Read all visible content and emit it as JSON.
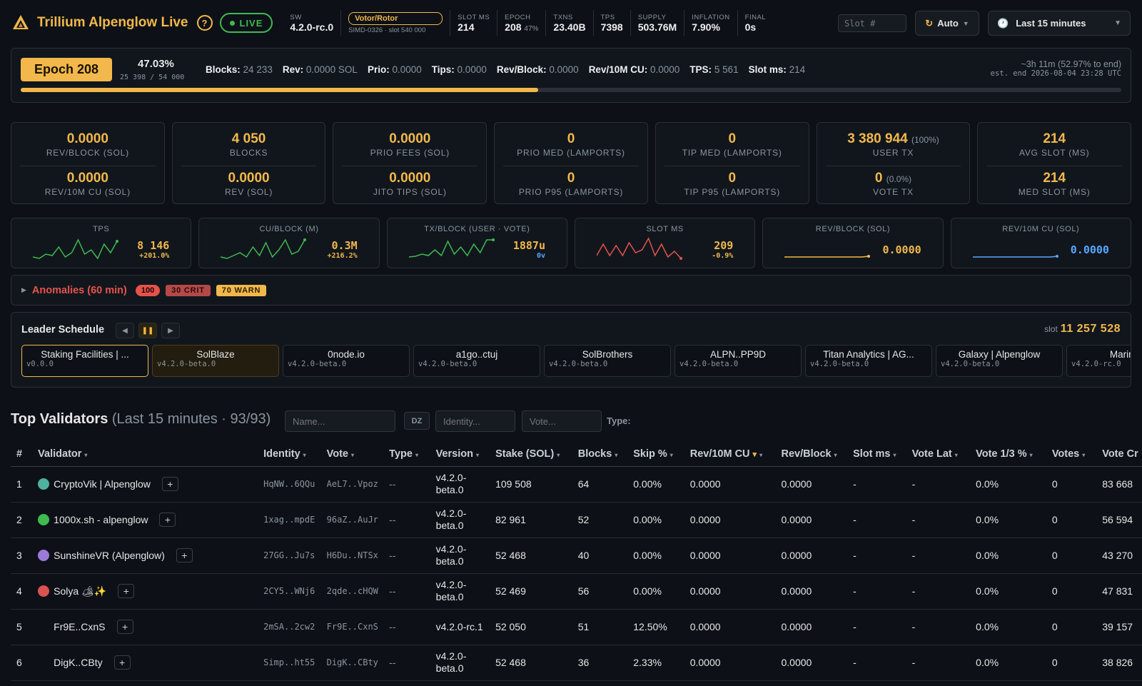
{
  "header": {
    "title": "Trillium Alpenglow Live",
    "help": "?",
    "live": "LIVE",
    "stats": [
      {
        "label": "SW",
        "value": "4.2.0-rc.0"
      },
      {
        "label": "SLOT MS",
        "value": "214"
      },
      {
        "label": "EPOCH",
        "value": "208",
        "extra": "47%"
      },
      {
        "label": "TXNS",
        "value": "23.40B"
      },
      {
        "label": "TPS",
        "value": "7398"
      },
      {
        "label": "SUPPLY",
        "value": "503.76M"
      },
      {
        "label": "INFLATION",
        "value": "7.90%"
      },
      {
        "label": "FINAL",
        "value": "0s"
      }
    ],
    "votor": {
      "label": "Votor/Rotor",
      "sub": "SIMD-0326 · slot 540 000"
    },
    "slot_placeholder": "Slot #",
    "auto_label": "Auto",
    "range_label": "Last 15 minutes"
  },
  "epoch": {
    "badge": "Epoch 208",
    "pct": "47.03%",
    "slots": "25 398 / 54 000",
    "progress": 0.4703,
    "stats": [
      {
        "k": "Blocks:",
        "v": "24 233"
      },
      {
        "k": "Rev:",
        "v": "0.0000 SOL"
      },
      {
        "k": "Prio:",
        "v": "0.0000"
      },
      {
        "k": "Tips:",
        "v": "0.0000"
      },
      {
        "k": "Rev/Block:",
        "v": "0.0000"
      },
      {
        "k": "Rev/10M CU:",
        "v": "0.0000"
      },
      {
        "k": "TPS:",
        "v": "5 561"
      },
      {
        "k": "Slot ms:",
        "v": "214"
      }
    ],
    "remaining": "~3h 11m (52.97% to end)",
    "est_end": "est. end 2026-08-04 23:28 UTC"
  },
  "cards": [
    {
      "top": {
        "v": "0.0000",
        "l": "REV/BLOCK (SOL)"
      },
      "bottom": {
        "v": "0.0000",
        "l": "REV/10M CU (SOL)"
      }
    },
    {
      "top": {
        "v": "4 050",
        "l": "BLOCKS"
      },
      "bottom": {
        "v": "0.0000",
        "l": "REV (SOL)"
      }
    },
    {
      "top": {
        "v": "0.0000",
        "l": "PRIO FEES (SOL)"
      },
      "bottom": {
        "v": "0.0000",
        "l": "JITO TIPS (SOL)"
      }
    },
    {
      "top": {
        "v": "0",
        "l": "PRIO MED (LAMPORTS)"
      },
      "bottom": {
        "v": "0",
        "l": "PRIO P95 (LAMPORTS)"
      }
    },
    {
      "top": {
        "v": "0",
        "l": "TIP MED (LAMPORTS)"
      },
      "bottom": {
        "v": "0",
        "l": "TIP P95 (LAMPORTS)"
      }
    },
    {
      "top": {
        "v": "3 380 944",
        "x": "(100%)",
        "l": "USER TX"
      },
      "bottom": {
        "v": "0",
        "x": "(0.0%)",
        "l": "VOTE TX"
      }
    },
    {
      "top": {
        "v": "214",
        "l": "AVG SLOT (MS)"
      },
      "bottom": {
        "v": "214",
        "l": "MED SLOT (MS)"
      }
    }
  ],
  "sparks": [
    {
      "label": "TPS",
      "main": "8 146",
      "sub": "+201.0%",
      "color": "#3fb950",
      "main_color": "#f2b84b",
      "sub_color": "#f2b84b"
    },
    {
      "label": "CU/BLOCK (M)",
      "main": "0.3M",
      "sub": "+216.2%",
      "color": "#3fb950",
      "main_color": "#f2b84b",
      "sub_color": "#f2b84b"
    },
    {
      "label": "TX/BLOCK (USER · VOTE)",
      "main": "1887u",
      "sub": "0v",
      "color": "#3fb950",
      "main_color": "#f2b84b",
      "sub_color": "#58a6ff"
    },
    {
      "label": "SLOT MS",
      "main": "209",
      "sub": "-0.9%",
      "color": "#e5534b",
      "main_color": "#f2b84b",
      "sub_color": "#f2b84b"
    },
    {
      "label": "REV/BLOCK (SOL)",
      "main": "0.0000",
      "sub": "",
      "color": "#f2b84b",
      "main_color": "#f2b84b",
      "sub_color": "#f2b84b"
    },
    {
      "label": "REV/10M CU (SOL)",
      "main": "0.0000",
      "sub": "",
      "color": "#58a6ff",
      "main_color": "#58a6ff",
      "sub_color": "#58a6ff"
    }
  ],
  "anomalies": {
    "title": "Anomalies (60 min)",
    "count": "100",
    "crit": "30 CRIT",
    "warn": "70 WARN"
  },
  "leader": {
    "title": "Leader Schedule",
    "slot_label": "slot",
    "slot": "11 257 528",
    "slots": [
      {
        "name": "Staking Facilities | ...",
        "ver": "v0.0.0"
      },
      {
        "name": "SolBlaze",
        "ver": "v4.2.0-beta.0"
      },
      {
        "name": "0node.io",
        "ver": "v4.2.0-beta.0"
      },
      {
        "name": "a1go..ctuj",
        "ver": "v4.2.0-beta.0"
      },
      {
        "name": "SolBrothers",
        "ver": "v4.2.0-beta.0"
      },
      {
        "name": "ALPN..PP9D",
        "ver": "v4.2.0-beta.0"
      },
      {
        "name": "Titan Analytics | AG...",
        "ver": "v4.2.0-beta.0"
      },
      {
        "name": "Galaxy | Alpenglow",
        "ver": "v4.2.0-beta.0"
      },
      {
        "name": "Marinade",
        "ver": "v4.2.0-rc.0"
      }
    ]
  },
  "validators": {
    "title": "Top Validators",
    "subtitle": "(Last 15 minutes · 93/93)",
    "filters": {
      "name": "Name...",
      "dz": "DZ",
      "identity": "Identity...",
      "vote": "Vote...",
      "type": "Type:"
    },
    "columns": [
      "#",
      "Validator",
      "Identity",
      "Vote",
      "Type",
      "Version",
      "Stake (SOL)",
      "Blocks",
      "Skip %",
      "Rev/10M CU",
      "Rev/Block",
      "Slot ms",
      "Vote Lat",
      "Vote 1/3 %",
      "Votes",
      "Vote Cr"
    ],
    "rows": [
      {
        "n": "1",
        "name": "CryptoVik | Alpenglow",
        "avatar": "#4fb0a0",
        "identity": "HqNW..6QQu",
        "vote": "AeL7..Vpoz",
        "type": "--",
        "version": "v4.2.0-beta.0",
        "stake": "109 508",
        "blocks": "64",
        "skip": "0.00%",
        "rev10": "0.0000",
        "revblock": "0.0000",
        "slotms": "-",
        "votelat": "-",
        "vote13": "0.0%",
        "votes": "0",
        "votecr": "83 668"
      },
      {
        "n": "2",
        "name": "1000x.sh - alpenglow",
        "avatar": "#3fb950",
        "identity": "1xag..mpdE",
        "vote": "96aZ..AuJr",
        "type": "--",
        "version": "v4.2.0-beta.0",
        "stake": "82 961",
        "blocks": "52",
        "skip": "0.00%",
        "rev10": "0.0000",
        "revblock": "0.0000",
        "slotms": "-",
        "votelat": "-",
        "vote13": "0.0%",
        "votes": "0",
        "votecr": "56 594"
      },
      {
        "n": "3",
        "name": "SunshineVR (Alpenglow)",
        "avatar": "#9c7bd8",
        "identity": "27GG..Ju7s",
        "vote": "H6Du..NTSx",
        "type": "--",
        "version": "v4.2.0-beta.0",
        "stake": "52 468",
        "blocks": "40",
        "skip": "0.00%",
        "rev10": "0.0000",
        "revblock": "0.0000",
        "slotms": "-",
        "votelat": "-",
        "vote13": "0.0%",
        "votes": "0",
        "votecr": "43 270"
      },
      {
        "n": "4",
        "name": "Solya 🏕✨",
        "avatar": "#d9534f",
        "identity": "2CY5..WNj6",
        "vote": "2qde..cHQW",
        "type": "--",
        "version": "v4.2.0-beta.0",
        "stake": "52 469",
        "blocks": "56",
        "skip": "0.00%",
        "rev10": "0.0000",
        "revblock": "0.0000",
        "slotms": "-",
        "votelat": "-",
        "vote13": "0.0%",
        "votes": "0",
        "votecr": "47 831"
      },
      {
        "n": "5",
        "name": "Fr9E..CxnS",
        "avatar": "",
        "identity": "2mSA..2cw2",
        "vote": "Fr9E..CxnS",
        "type": "--",
        "version": "v4.2.0-rc.1",
        "stake": "52 050",
        "blocks": "51",
        "skip": "12.50%",
        "rev10": "0.0000",
        "revblock": "0.0000",
        "slotms": "-",
        "votelat": "-",
        "vote13": "0.0%",
        "votes": "0",
        "votecr": "39 157"
      },
      {
        "n": "6",
        "name": "DigK..CBty",
        "avatar": "",
        "identity": "Simp..ht55",
        "vote": "DigK..CBty",
        "type": "--",
        "version": "v4.2.0-beta.0",
        "stake": "52 468",
        "blocks": "36",
        "skip": "2.33%",
        "rev10": "0.0000",
        "revblock": "0.0000",
        "slotms": "-",
        "votelat": "-",
        "vote13": "0.0%",
        "votes": "0",
        "votecr": "38 826"
      }
    ]
  }
}
